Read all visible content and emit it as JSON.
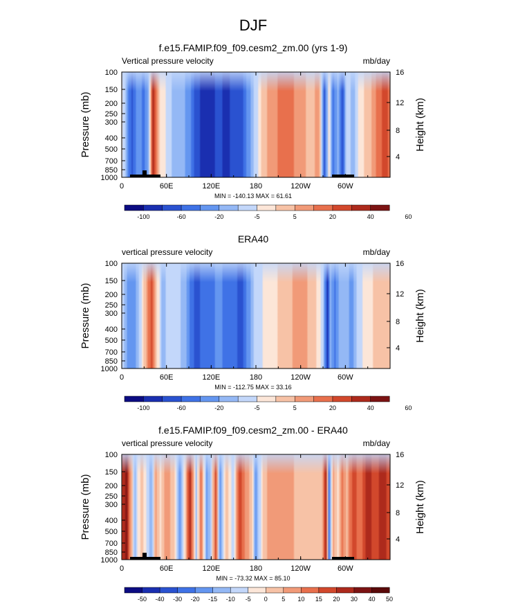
{
  "figure_title": "DJF",
  "colors": {
    "scale1": [
      "#0c0c82",
      "#1a2fb0",
      "#2a52d0",
      "#3f72e6",
      "#6496f0",
      "#94b8f5",
      "#c3d7fa",
      "#fce6d8",
      "#f7c2a6",
      "#f19a78",
      "#e8704d",
      "#d2482c",
      "#ad2a1c",
      "#7c1313"
    ],
    "scale2": [
      "#0c0c82",
      "#1a2fb0",
      "#2a52d0",
      "#3f72e6",
      "#6496f0",
      "#94b8f5",
      "#c3d7fa",
      "#fce6d8",
      "#f7c2a6",
      "#f19a78",
      "#e8704d",
      "#d2482c",
      "#ad2a1c",
      "#7c1313",
      "#5a0a0a"
    ]
  },
  "chart_data": [
    {
      "type": "heatmap",
      "title": "f.e15.FAMIP.f09_f09.cesm2_zm.00 (yrs 1-9)",
      "left_label": "Vertical pressure velocity",
      "right_label": "mb/day",
      "ylabel": "Pressure (mb)",
      "y2label": "Height (km)",
      "x_ticks": [
        {
          "v": 0,
          "l": "0"
        },
        {
          "v": 60,
          "l": "60E"
        },
        {
          "v": 120,
          "l": "120E"
        },
        {
          "v": 180,
          "l": "180"
        },
        {
          "v": 240,
          "l": "120W"
        },
        {
          "v": 300,
          "l": "60W"
        }
      ],
      "y_ticks": [
        "100",
        "150",
        "200",
        "250",
        "300",
        "400",
        "500",
        "700",
        "850",
        "1000"
      ],
      "y2_ticks": [
        "16",
        "12",
        "8",
        "4"
      ],
      "stats": "MIN = -140.13  MAX =  61.61",
      "colorbar_labels": [
        "-100",
        "-60",
        "-20",
        "-5",
        "5",
        "20",
        "40",
        "60"
      ],
      "xlim": [
        0,
        360
      ],
      "ylim": [
        1000,
        100
      ]
    },
    {
      "type": "heatmap",
      "title": "ERA40",
      "left_label": "vertical pressure velocity",
      "right_label": "mb/day",
      "ylabel": "Pressure (mb)",
      "y2label": "Height (km)",
      "x_ticks": [
        {
          "v": 0,
          "l": "0"
        },
        {
          "v": 60,
          "l": "60E"
        },
        {
          "v": 120,
          "l": "120E"
        },
        {
          "v": 180,
          "l": "180"
        },
        {
          "v": 240,
          "l": "120W"
        },
        {
          "v": 300,
          "l": "60W"
        }
      ],
      "y_ticks": [
        "100",
        "150",
        "200",
        "250",
        "300",
        "400",
        "500",
        "700",
        "850",
        "1000"
      ],
      "y2_ticks": [
        "16",
        "12",
        "8",
        "4"
      ],
      "stats": "MIN = -112.75  MAX =  33.16",
      "colorbar_labels": [
        "-100",
        "-60",
        "-20",
        "-5",
        "5",
        "20",
        "40",
        "60"
      ],
      "xlim": [
        0,
        360
      ],
      "ylim": [
        1000,
        100
      ]
    },
    {
      "type": "heatmap",
      "title": "f.e15.FAMIP.f09_f09.cesm2_zm.00 - ERA40",
      "left_label": "vertical pressure velocity",
      "right_label": "mb/day",
      "ylabel": "Pressure (mb)",
      "y2label": "Height (km)",
      "x_ticks": [
        {
          "v": 0,
          "l": "0"
        },
        {
          "v": 60,
          "l": "60E"
        },
        {
          "v": 120,
          "l": "120E"
        },
        {
          "v": 180,
          "l": "180"
        },
        {
          "v": 240,
          "l": "120W"
        },
        {
          "v": 300,
          "l": "60W"
        }
      ],
      "y_ticks": [
        "100",
        "150",
        "200",
        "250",
        "300",
        "400",
        "500",
        "700",
        "850",
        "1000"
      ],
      "y2_ticks": [
        "16",
        "12",
        "8",
        "4"
      ],
      "stats": "MIN = -73.32  MAX =  85.10",
      "colorbar_labels": [
        "-50",
        "-40",
        "-30",
        "-20",
        "-15",
        "-10",
        "-5",
        "0",
        "5",
        "10",
        "15",
        "20",
        "30",
        "40",
        "50"
      ],
      "xlim": [
        0,
        360
      ],
      "ylim": [
        1000,
        100
      ]
    }
  ]
}
